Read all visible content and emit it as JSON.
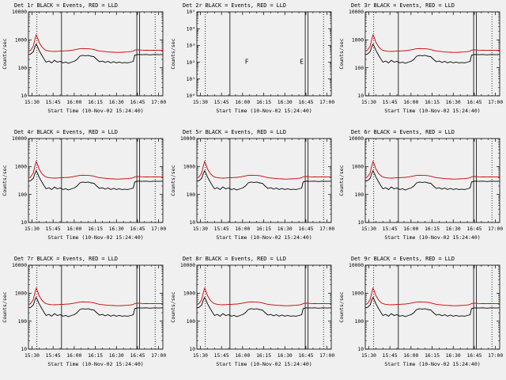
{
  "page": {
    "background": "#f0f0f0",
    "axis_color": "#000000"
  },
  "chart_data": {
    "type": "line",
    "layout": {
      "rows": 3,
      "cols": 3
    },
    "xlabel": "Start Time (10-Nov-02 15:24:40)",
    "ylabel": "Counts/sec",
    "x_domain_minutes": [
      27.5,
      123
    ],
    "x_tick_minutes": [
      30,
      45,
      60,
      75,
      90,
      105,
      120
    ],
    "x_ticks": [
      "15:30",
      "15:45",
      "16:00",
      "16:15",
      "16:30",
      "16:45",
      "17:00"
    ],
    "x_minor_step": 5,
    "default_y": {
      "log_min": 1,
      "log_max": 4,
      "tick_labels": [
        "10",
        "100",
        "1000",
        "10000"
      ]
    },
    "panel2_y": {
      "log_min": 0,
      "log_max": 5,
      "tick_labels": [
        "10⁰",
        "10¹",
        "10²",
        "10³",
        "10⁴",
        "10⁵"
      ]
    },
    "legend_note": "BLACK = Events, RED = LLD",
    "x_minutes": [
      27.5,
      29,
      31,
      32,
      33,
      34,
      35,
      37,
      39,
      40,
      42,
      44,
      46,
      48,
      50,
      52,
      54,
      56,
      58,
      60,
      62,
      64,
      66,
      68,
      70,
      72,
      74,
      76,
      78,
      80,
      82,
      84,
      86,
      88,
      90,
      92,
      94,
      96,
      98,
      100,
      102,
      103,
      105,
      108,
      111,
      114,
      117,
      120,
      123
    ],
    "series": {
      "events": {
        "name": "Events",
        "color": "#000000",
        "values": [
          300,
          310,
          380,
          550,
          700,
          560,
          420,
          280,
          190,
          160,
          175,
          150,
          185,
          160,
          170,
          150,
          160,
          145,
          160,
          170,
          200,
          260,
          280,
          270,
          280,
          260,
          250,
          200,
          165,
          175,
          155,
          170,
          150,
          165,
          150,
          160,
          150,
          155,
          150,
          160,
          170,
          280,
          300,
          295,
          300,
          290,
          300,
          295,
          300
        ]
      },
      "lld": {
        "name": "LLD",
        "color": "#cc0000",
        "values": [
          400,
          420,
          600,
          1000,
          1500,
          1150,
          820,
          560,
          450,
          420,
          400,
          390,
          385,
          390,
          395,
          400,
          405,
          410,
          420,
          440,
          460,
          480,
          490,
          485,
          480,
          470,
          450,
          420,
          400,
          390,
          380,
          370,
          365,
          360,
          355,
          355,
          360,
          365,
          370,
          380,
          395,
          430,
          440,
          430,
          425,
          420,
          425,
          420,
          425
        ]
      }
    },
    "vlines": [
      {
        "x": 33.5,
        "style": "dotted"
      },
      {
        "x": 51,
        "style": "solid"
      },
      {
        "x": 104.5,
        "style": "solid"
      },
      {
        "x": 106.5,
        "style": "solid"
      },
      {
        "x": 117.5,
        "style": "dotted"
      }
    ],
    "letters": [
      {
        "x": 63,
        "label": "F"
      },
      {
        "x": 102,
        "label": "E"
      }
    ],
    "panels": [
      {
        "title": "Det 1r BLACK = Events, RED = LLD",
        "has_data": true,
        "y": "default"
      },
      {
        "title": "Det 2r BLACK = Events, RED = LLD",
        "has_data": false,
        "y": "panel2"
      },
      {
        "title": "Det 3r BLACK = Events, RED = LLD",
        "has_data": true,
        "y": "default"
      },
      {
        "title": "Det 4r BLACK = Events, RED = LLD",
        "has_data": true,
        "y": "default"
      },
      {
        "title": "Det 5r BLACK = Events, RED = LLD",
        "has_data": true,
        "y": "default"
      },
      {
        "title": "Det 6r BLACK = Events, RED = LLD",
        "has_data": true,
        "y": "default"
      },
      {
        "title": "Det 7r BLACK = Events, RED = LLD",
        "has_data": true,
        "y": "default"
      },
      {
        "title": "Det 8r BLACK = Events, RED = LLD",
        "has_data": true,
        "y": "default"
      },
      {
        "title": "Det 9r BLACK = Events, RED = LLD",
        "has_data": true,
        "y": "default"
      }
    ]
  }
}
